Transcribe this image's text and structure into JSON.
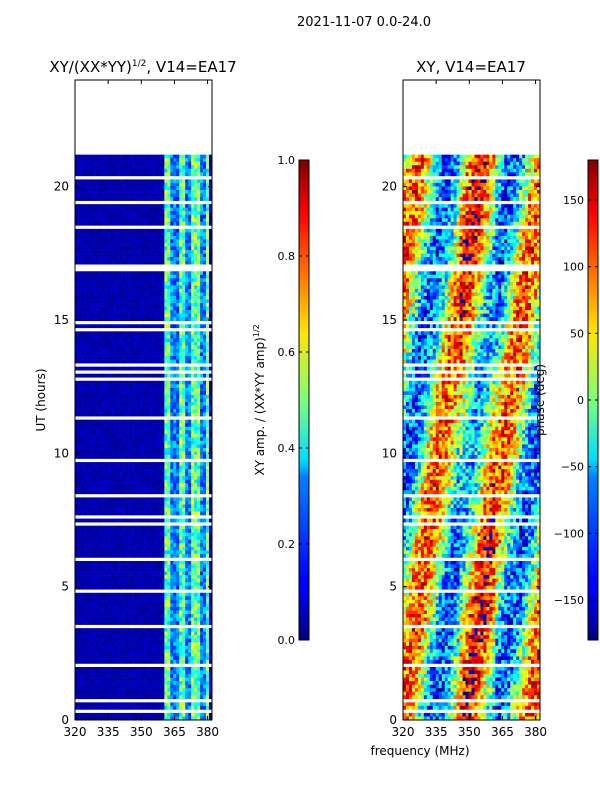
{
  "suptitle": "2021-11-07 0.0-24.0",
  "chart_data": [
    {
      "type": "heatmap",
      "title": "XY/(XX*YY)",
      "title_sup": "1/2",
      "title_suffix": ", V14=EA17",
      "ylabel": "UT (hours)",
      "xlabel": "",
      "xlim": [
        320,
        382
      ],
      "ylim": [
        0,
        24
      ],
      "xticks": [
        "320",
        "335",
        "350",
        "365",
        "380"
      ],
      "xtick_values": [
        320,
        335,
        350,
        365,
        380
      ],
      "yticks": [
        "0",
        "5",
        "10",
        "15",
        "20"
      ],
      "ytick_values": [
        0,
        5,
        10,
        15,
        20
      ],
      "data_time_range": [
        0,
        21.2
      ],
      "bright_band_mhz": [
        360,
        380
      ],
      "colorbar": {
        "label": "XY amp. / (XX*YY amp)",
        "label_sup": "1/2",
        "range": [
          0.0,
          1.0
        ],
        "ticks": [
          "0.0",
          "0.2",
          "0.4",
          "0.6",
          "0.8",
          "1.0"
        ],
        "tick_values": [
          0.0,
          0.2,
          0.4,
          0.6,
          0.8,
          1.0
        ],
        "colormap": "jet"
      }
    },
    {
      "type": "heatmap",
      "title": "XY, V14=EA17",
      "ylabel": "",
      "xlabel": "frequency (MHz)",
      "xlim": [
        320,
        382
      ],
      "ylim": [
        0,
        24
      ],
      "xticks": [
        "320",
        "335",
        "350",
        "365",
        "380"
      ],
      "xtick_values": [
        320,
        335,
        350,
        365,
        380
      ],
      "yticks": [
        "0",
        "5",
        "10",
        "15",
        "20"
      ],
      "ytick_values": [
        0,
        5,
        10,
        15,
        20
      ],
      "data_time_range": [
        0,
        21.2
      ],
      "colorbar": {
        "label": "phase (deg)",
        "range": [
          -180,
          180
        ],
        "ticks": [
          "−150",
          "−100",
          "−50",
          "0",
          "50",
          "100",
          "150"
        ],
        "tick_values": [
          -150,
          -100,
          -50,
          0,
          50,
          100,
          150
        ],
        "colormap": "jet"
      }
    }
  ]
}
